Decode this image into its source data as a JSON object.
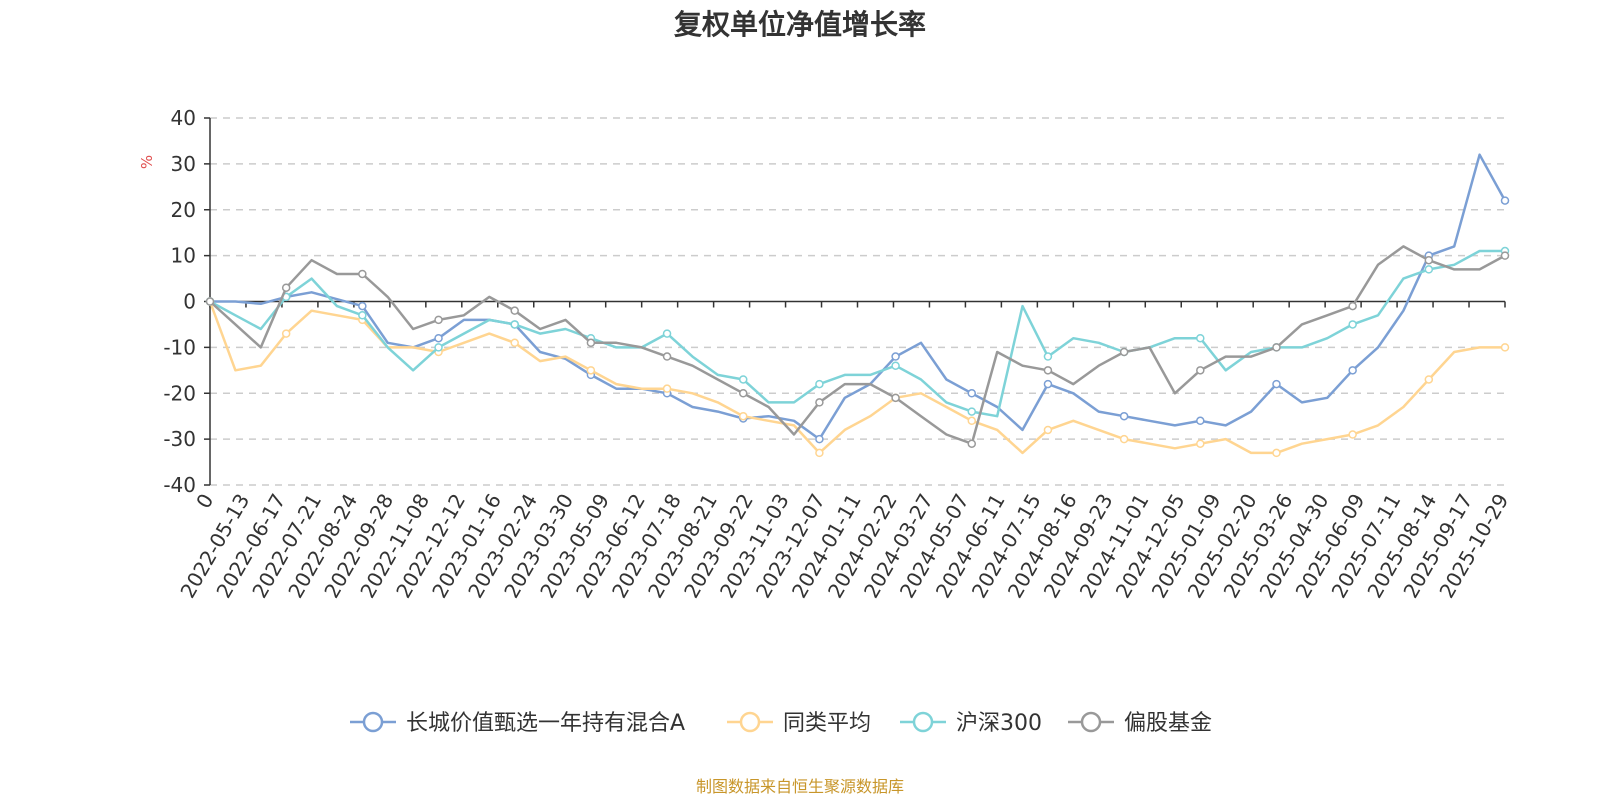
{
  "chart_data": {
    "type": "line",
    "title": "复权单位净值增长率",
    "ylabel": "%",
    "ylim": [
      -40,
      40
    ],
    "yticks": [
      40,
      30,
      20,
      10,
      0,
      -10,
      -20,
      -30,
      -40
    ],
    "x_tick_labels": [
      "0",
      "2022-05-13",
      "2022-06-17",
      "2022-07-21",
      "2022-08-24",
      "2022-09-28",
      "2022-11-08",
      "2022-12-12",
      "2023-01-16",
      "2023-02-24",
      "2023-03-30",
      "2023-05-09",
      "2023-06-12",
      "2023-07-18",
      "2023-08-21",
      "2023-09-22",
      "2023-11-03",
      "2023-12-07",
      "2024-01-11",
      "2024-02-22",
      "2024-03-27",
      "2024-05-07",
      "2024-06-11",
      "2024-07-15",
      "2024-08-16",
      "2024-09-23",
      "2024-11-01",
      "2024-12-05",
      "2025-01-09",
      "2025-02-20",
      "2025-03-26",
      "2025-04-30",
      "2025-06-09",
      "2025-07-11",
      "2025-08-14",
      "2025-09-17",
      "2025-10-29"
    ],
    "grid": "dashed-horizontal",
    "legend_position": "bottom-center",
    "series": [
      {
        "name": "长城价值甄选一年持有混合A",
        "color": "#7b9fd4",
        "values": [
          0,
          0,
          -0.5,
          1,
          2,
          0.5,
          -1,
          -9,
          -10,
          -8,
          -4,
          -4,
          -5,
          -11,
          -12.5,
          -16,
          -19,
          -19,
          -20,
          -23,
          -24,
          -25.5,
          -25,
          -26,
          -30,
          -21,
          -18,
          -12,
          -9,
          -17,
          -20,
          -23,
          -28,
          -18,
          -20,
          -24,
          -25,
          -26,
          -27,
          -26,
          -27,
          -24,
          -18,
          -22,
          -21,
          -15,
          -10,
          -2,
          10,
          12,
          32,
          22
        ]
      },
      {
        "name": "同类平均",
        "color": "#ffd591",
        "values": [
          0,
          -15,
          -14,
          -7,
          -2,
          -3,
          -4,
          -10,
          -10,
          -11,
          -9,
          -7,
          -9,
          -13,
          -12,
          -15,
          -18,
          -19,
          -19,
          -20,
          -22,
          -25,
          -26,
          -27,
          -33,
          -28,
          -25,
          -21,
          -20,
          -23,
          -26,
          -28,
          -33,
          -28,
          -26,
          -28,
          -30,
          -31,
          -32,
          -31,
          -30,
          -33,
          -33,
          -31,
          -30,
          -29,
          -27,
          -23,
          -17,
          -11,
          -10,
          -10
        ]
      },
      {
        "name": "沪深300",
        "color": "#7ed3d8",
        "values": [
          0,
          -3,
          -6,
          1,
          5,
          -1,
          -3,
          -10,
          -15,
          -10,
          -7,
          -4,
          -5,
          -7,
          -6,
          -8,
          -10,
          -10,
          -7,
          -12,
          -16,
          -17,
          -22,
          -22,
          -18,
          -16,
          -16,
          -14,
          -17,
          -22,
          -24,
          -25,
          -1,
          -12,
          -8,
          -9,
          -11,
          -10,
          -8,
          -8,
          -15,
          -11,
          -10,
          -10,
          -8,
          -5,
          -3,
          5,
          7,
          8,
          11,
          11
        ]
      },
      {
        "name": "偏股基金",
        "color": "#999999",
        "values": [
          0,
          -5,
          -10,
          3,
          9,
          6,
          6,
          1,
          -6,
          -4,
          -3,
          1,
          -2,
          -6,
          -4,
          -9,
          -9,
          -10,
          -12,
          -14,
          -17,
          -20,
          -23,
          -29,
          -22,
          -18,
          -18,
          -21,
          -25,
          -29,
          -31,
          -11,
          -14,
          -15,
          -18,
          -14,
          -11,
          -10,
          -20,
          -15,
          -12,
          -12,
          -10,
          -5,
          -3,
          -1,
          8,
          12,
          9,
          7,
          7,
          10
        ]
      }
    ]
  },
  "source_note": "制图数据来自恒生聚源数据库",
  "source_color": "#c8962a"
}
